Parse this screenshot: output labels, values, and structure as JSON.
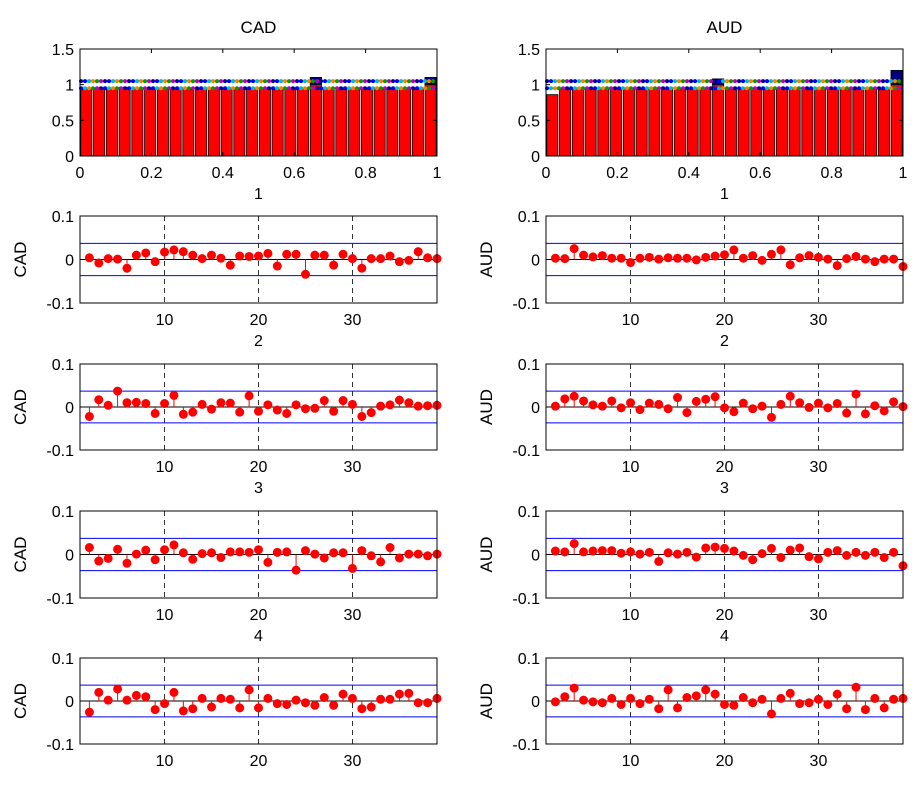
{
  "chart_data": [
    {
      "type": "bar",
      "title": "CAD",
      "xlabel": "1",
      "xlim": [
        0,
        1
      ],
      "ylim": [
        0,
        1.5
      ],
      "xticks": [
        "0",
        "0.2",
        "0.4",
        "0.6",
        "0.8",
        "1"
      ],
      "yticks": [
        "0",
        "0.5",
        "1",
        "1.5"
      ],
      "bar_color": "#ff0000",
      "band_lines": [
        1.05,
        0.95
      ],
      "band_colors": [
        "#000080",
        "#0000ff",
        "#00c0c0",
        "#ff8000",
        "#00a000",
        "#c000c0"
      ],
      "highlight_color": "#000080",
      "values": [
        0.93,
        0.95,
        0.94,
        0.96,
        0.93,
        0.95,
        0.94,
        0.95,
        0.93,
        0.94,
        0.95,
        0.94,
        0.93,
        0.95,
        0.94,
        0.93,
        0.95,
        0.94,
        1.1,
        0.94,
        0.93,
        0.95,
        0.94,
        0.93,
        0.94,
        0.95,
        0.94,
        1.1
      ]
    },
    {
      "type": "bar",
      "title": "AUD",
      "xlabel": "1",
      "xlim": [
        0,
        1
      ],
      "ylim": [
        0,
        1.5
      ],
      "xticks": [
        "0",
        "0.2",
        "0.4",
        "0.6",
        "0.8",
        "1"
      ],
      "yticks": [
        "0",
        "0.5",
        "1",
        "1.5"
      ],
      "bar_color": "#ff0000",
      "band_lines": [
        1.05,
        0.95
      ],
      "band_colors": [
        "#000080",
        "#0000ff",
        "#00c0c0",
        "#ff8000",
        "#00a000",
        "#c000c0"
      ],
      "highlight_color": "#000080",
      "values": [
        0.86,
        0.93,
        0.95,
        0.94,
        0.93,
        0.95,
        0.94,
        0.93,
        0.95,
        0.94,
        0.93,
        0.95,
        0.94,
        1.08,
        0.93,
        0.95,
        0.94,
        0.93,
        0.95,
        0.94,
        0.93,
        0.95,
        0.94,
        0.93,
        0.95,
        0.94,
        0.93,
        1.2
      ]
    },
    {
      "type": "stem",
      "ylabel": "CAD",
      "xlabel": "2",
      "xlim": [
        1,
        39
      ],
      "ylim": [
        -0.1,
        0.1
      ],
      "conf": 0.037,
      "xticks": [
        10,
        20,
        30
      ],
      "yticks": [
        "0.1",
        "0",
        "-0.1"
      ],
      "x": [
        2,
        3,
        4,
        5,
        6,
        7,
        8,
        9,
        10,
        11,
        12,
        13,
        14,
        15,
        16,
        17,
        18,
        19,
        20,
        21,
        22,
        23,
        24,
        25,
        26,
        27,
        28,
        29,
        30,
        31,
        32,
        33,
        34,
        35,
        36,
        37,
        38,
        39
      ],
      "values": [
        0.004,
        -0.008,
        0.002,
        0.001,
        -0.02,
        0.01,
        0.015,
        -0.005,
        0.017,
        0.022,
        0.018,
        0.01,
        0.002,
        0.01,
        0.003,
        -0.013,
        0.008,
        0.007,
        0.008,
        0.014,
        -0.015,
        0.012,
        0.012,
        -0.034,
        0.01,
        0.01,
        -0.013,
        0.012,
        0.002,
        -0.02,
        0.002,
        0.002,
        0.008,
        -0.005,
        -0.002,
        0.018,
        0.004,
        0.002
      ]
    },
    {
      "type": "stem",
      "ylabel": "AUD",
      "xlabel": "2",
      "xlim": [
        1,
        39
      ],
      "ylim": [
        -0.1,
        0.1
      ],
      "conf": 0.037,
      "xticks": [
        10,
        20,
        30
      ],
      "yticks": [
        "0.1",
        "0",
        "-0.1"
      ],
      "x": [
        2,
        3,
        4,
        5,
        6,
        7,
        8,
        9,
        10,
        11,
        12,
        13,
        14,
        15,
        16,
        17,
        18,
        19,
        20,
        21,
        22,
        23,
        24,
        25,
        26,
        27,
        28,
        29,
        30,
        31,
        32,
        33,
        34,
        35,
        36,
        37,
        38,
        39
      ],
      "values": [
        0.003,
        0.002,
        0.025,
        0.01,
        0.006,
        0.009,
        0.003,
        0.003,
        -0.007,
        0.003,
        0.005,
        0.001,
        0.004,
        0.003,
        0.003,
        -0.001,
        0.005,
        0.008,
        0.011,
        0.022,
        0.003,
        0.009,
        -0.002,
        0.012,
        0.022,
        -0.012,
        0.004,
        0.009,
        0.005,
        0.001,
        -0.014,
        0.002,
        0.007,
        0.001,
        -0.005,
        0.001,
        0.001,
        -0.016
      ]
    },
    {
      "type": "stem",
      "ylabel": "CAD",
      "xlabel": "3",
      "xlim": [
        1,
        39
      ],
      "ylim": [
        -0.1,
        0.1
      ],
      "conf": 0.037,
      "xticks": [
        10,
        20,
        30
      ],
      "yticks": [
        "0.1",
        "0",
        "-0.1"
      ],
      "x": [
        2,
        3,
        4,
        5,
        6,
        7,
        8,
        9,
        10,
        11,
        12,
        13,
        14,
        15,
        16,
        17,
        18,
        19,
        20,
        21,
        22,
        23,
        24,
        25,
        26,
        27,
        28,
        29,
        30,
        31,
        32,
        33,
        34,
        35,
        36,
        37,
        38,
        39
      ],
      "values": [
        -0.022,
        0.017,
        0.004,
        0.037,
        0.01,
        0.011,
        0.008,
        -0.015,
        0.008,
        0.027,
        -0.017,
        -0.012,
        0.006,
        -0.005,
        0.01,
        0.009,
        -0.012,
        0.026,
        -0.01,
        0.005,
        -0.007,
        -0.015,
        0.005,
        -0.004,
        -0.003,
        0.015,
        -0.01,
        0.015,
        0.006,
        -0.022,
        -0.013,
        0.002,
        0.005,
        0.016,
        0.01,
        0.002,
        0.003,
        0.004
      ]
    },
    {
      "type": "stem",
      "ylabel": "AUD",
      "xlabel": "3",
      "xlim": [
        1,
        39
      ],
      "ylim": [
        -0.1,
        0.1
      ],
      "conf": 0.037,
      "xticks": [
        10,
        20,
        30
      ],
      "yticks": [
        "0.1",
        "0",
        "-0.1"
      ],
      "x": [
        2,
        3,
        4,
        5,
        6,
        7,
        8,
        9,
        10,
        11,
        12,
        13,
        14,
        15,
        16,
        17,
        18,
        19,
        20,
        21,
        22,
        23,
        24,
        25,
        26,
        27,
        28,
        29,
        30,
        31,
        32,
        33,
        34,
        35,
        36,
        37,
        38,
        39
      ],
      "values": [
        0.002,
        0.019,
        0.025,
        0.014,
        0.005,
        0.002,
        0.014,
        -0.002,
        0.01,
        -0.006,
        0.009,
        0.006,
        -0.004,
        0.022,
        -0.013,
        0.013,
        0.018,
        0.024,
        -0.002,
        -0.011,
        0.009,
        -0.004,
        0.002,
        -0.024,
        0.006,
        0.025,
        0.01,
        -0.001,
        0.009,
        -0.002,
        0.008,
        -0.014,
        0.03,
        -0.016,
        0.003,
        -0.009,
        0.012,
        0.001
      ]
    },
    {
      "type": "stem",
      "ylabel": "CAD",
      "xlabel": "4",
      "xlim": [
        1,
        39
      ],
      "ylim": [
        -0.1,
        0.1
      ],
      "conf": 0.037,
      "xticks": [
        10,
        20,
        30
      ],
      "yticks": [
        "0.1",
        "0",
        "-0.1"
      ],
      "x": [
        2,
        3,
        4,
        5,
        6,
        7,
        8,
        9,
        10,
        11,
        12,
        13,
        14,
        15,
        16,
        17,
        18,
        19,
        20,
        21,
        22,
        23,
        24,
        25,
        26,
        27,
        28,
        29,
        30,
        31,
        32,
        33,
        34,
        35,
        36,
        37,
        38,
        39
      ],
      "values": [
        0.016,
        -0.015,
        -0.009,
        0.012,
        -0.02,
        0.001,
        0.01,
        -0.012,
        0.011,
        0.022,
        0.004,
        -0.011,
        0.002,
        0.004,
        -0.007,
        0.006,
        0.006,
        0.005,
        0.011,
        -0.018,
        0.005,
        0.006,
        -0.036,
        0.009,
        0.001,
        -0.008,
        0.004,
        0.004,
        -0.032,
        0.009,
        -0.003,
        -0.017,
        0.016,
        -0.008,
        0.001,
        0.001,
        -0.003,
        0.001
      ]
    },
    {
      "type": "stem",
      "ylabel": "AUD",
      "xlabel": "4",
      "xlim": [
        1,
        39
      ],
      "ylim": [
        -0.1,
        0.1
      ],
      "conf": 0.037,
      "xticks": [
        10,
        20,
        30
      ],
      "yticks": [
        "0.1",
        "0",
        "-0.1"
      ],
      "x": [
        2,
        3,
        4,
        5,
        6,
        7,
        8,
        9,
        10,
        11,
        12,
        13,
        14,
        15,
        16,
        17,
        18,
        19,
        20,
        21,
        22,
        23,
        24,
        25,
        26,
        27,
        28,
        29,
        30,
        31,
        32,
        33,
        34,
        35,
        36,
        37,
        38,
        39
      ],
      "values": [
        0.008,
        0.006,
        0.025,
        0.006,
        0.008,
        0.009,
        0.009,
        0.003,
        0.006,
        0.001,
        0.005,
        -0.016,
        0.004,
        0.001,
        0.005,
        -0.006,
        0.015,
        0.017,
        0.014,
        0.008,
        -0.002,
        -0.012,
        0.002,
        0.014,
        -0.007,
        0.01,
        0.015,
        -0.005,
        -0.01,
        0.005,
        0.009,
        -0.002,
        0.005,
        -0.002,
        0.005,
        -0.007,
        0.005,
        -0.026
      ]
    },
    {
      "type": "stem",
      "ylabel": "CAD",
      "xlabel": "",
      "xlim": [
        1,
        39
      ],
      "ylim": [
        -0.1,
        0.1
      ],
      "conf": 0.037,
      "xticks": [
        10,
        20,
        30
      ],
      "yticks": [
        "0.1",
        "0",
        "-0.1"
      ],
      "x": [
        2,
        3,
        4,
        5,
        6,
        7,
        8,
        9,
        10,
        11,
        12,
        13,
        14,
        15,
        16,
        17,
        18,
        19,
        20,
        21,
        22,
        23,
        24,
        25,
        26,
        27,
        28,
        29,
        30,
        31,
        32,
        33,
        34,
        35,
        36,
        37,
        38,
        39
      ],
      "values": [
        -0.026,
        0.02,
        0.002,
        0.028,
        0.002,
        0.013,
        0.01,
        -0.02,
        -0.006,
        0.02,
        -0.023,
        -0.018,
        0.006,
        -0.014,
        0.006,
        0.004,
        -0.016,
        0.026,
        -0.016,
        0.006,
        -0.006,
        -0.008,
        0.002,
        -0.004,
        -0.01,
        0.008,
        -0.01,
        0.016,
        0.006,
        -0.018,
        -0.014,
        0.004,
        0.004,
        0.016,
        0.018,
        -0.004,
        -0.004,
        0.006
      ]
    },
    {
      "type": "stem",
      "ylabel": "AUD",
      "xlabel": "",
      "xlim": [
        1,
        39
      ],
      "ylim": [
        -0.1,
        0.1
      ],
      "conf": 0.037,
      "xticks": [
        10,
        20,
        30
      ],
      "yticks": [
        "0.1",
        "0",
        "-0.1"
      ],
      "x": [
        2,
        3,
        4,
        5,
        6,
        7,
        8,
        9,
        10,
        11,
        12,
        13,
        14,
        15,
        16,
        17,
        18,
        19,
        20,
        21,
        22,
        23,
        24,
        25,
        26,
        27,
        28,
        29,
        30,
        31,
        32,
        33,
        34,
        35,
        36,
        37,
        38,
        39
      ],
      "values": [
        -0.002,
        0.01,
        0.03,
        0.002,
        -0.002,
        -0.004,
        0.006,
        -0.008,
        0.006,
        -0.006,
        0.004,
        -0.018,
        0.026,
        -0.016,
        0.008,
        0.012,
        0.026,
        0.016,
        -0.008,
        -0.01,
        0.008,
        -0.004,
        0.004,
        -0.03,
        0.006,
        0.018,
        -0.006,
        -0.004,
        0.004,
        -0.008,
        0.016,
        -0.018,
        0.032,
        -0.02,
        0.006,
        -0.016,
        0.004,
        0.006
      ]
    }
  ]
}
